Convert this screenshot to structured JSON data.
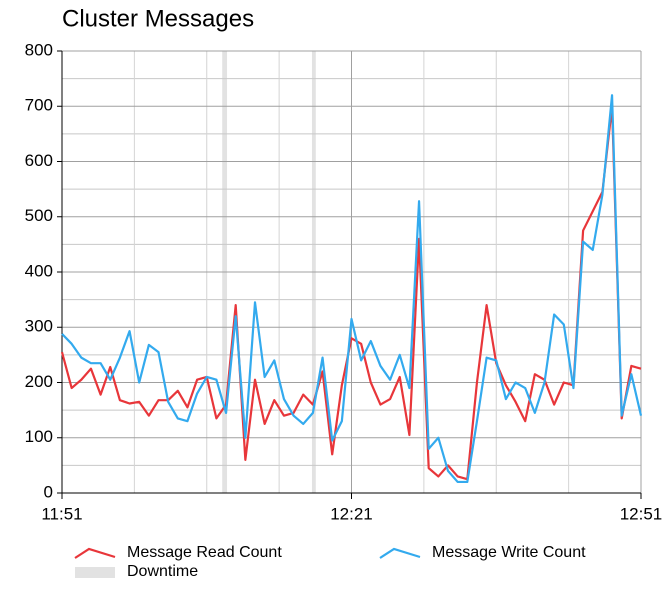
{
  "chart_data": {
    "type": "line",
    "title": "Cluster Messages",
    "x": [
      711,
      712,
      713,
      714,
      715,
      716,
      717,
      718,
      719,
      720,
      721,
      722,
      723,
      724,
      725,
      726,
      727,
      728,
      729,
      730,
      731,
      732,
      733,
      734,
      735,
      736,
      737,
      738,
      739,
      740,
      741,
      742,
      743,
      744,
      745,
      746,
      747,
      748,
      749,
      750,
      751,
      752,
      753,
      754,
      755,
      756,
      757,
      758,
      759,
      760,
      761,
      762,
      763,
      764,
      765,
      766,
      767,
      768,
      769,
      770,
      771
    ],
    "series": [
      {
        "name": "Message Read Count",
        "color": "#e8363a",
        "values": [
          255,
          190,
          205,
          225,
          178,
          228,
          168,
          162,
          165,
          140,
          168,
          168,
          185,
          155,
          205,
          210,
          135,
          160,
          340,
          60,
          205,
          125,
          168,
          140,
          145,
          178,
          160,
          220,
          70,
          195,
          280,
          270,
          200,
          160,
          170,
          210,
          105,
          460,
          45,
          30,
          50,
          30,
          25,
          200,
          340,
          235,
          195,
          165,
          130,
          215,
          205,
          160,
          200,
          195,
          475,
          510,
          545,
          700,
          135,
          230,
          225
        ]
      },
      {
        "name": "Message Write Count",
        "color": "#33aaee",
        "values": [
          288,
          270,
          245,
          235,
          235,
          205,
          245,
          293,
          200,
          268,
          255,
          165,
          135,
          130,
          180,
          210,
          205,
          145,
          320,
          100,
          345,
          210,
          240,
          170,
          140,
          125,
          145,
          245,
          95,
          130,
          315,
          240,
          275,
          230,
          205,
          250,
          190,
          528,
          80,
          100,
          40,
          20,
          20,
          130,
          245,
          240,
          170,
          200,
          190,
          145,
          200,
          323,
          305,
          190,
          455,
          440,
          540,
          720,
          140,
          215,
          140
        ]
      }
    ],
    "downtime": {
      "name": "Downtime",
      "color": "#e2e2e2",
      "ranges": [
        [
          727.6,
          728.1
        ],
        [
          736.9,
          737.3
        ]
      ]
    },
    "xlim": [
      711,
      771
    ],
    "xticks": [
      {
        "value": 711,
        "label": "11:51"
      },
      {
        "value": 741,
        "label": "12:21"
      },
      {
        "value": 771,
        "label": "12:51"
      }
    ],
    "xminor": [
      718.5,
      726,
      733.5,
      748.5,
      756,
      763.5
    ],
    "ylim": [
      0,
      800
    ],
    "yticks": [
      0,
      100,
      200,
      300,
      400,
      500,
      600,
      700,
      800
    ],
    "yminor": [
      50,
      150,
      250,
      350,
      450,
      550,
      650,
      750
    ],
    "grid": true
  }
}
